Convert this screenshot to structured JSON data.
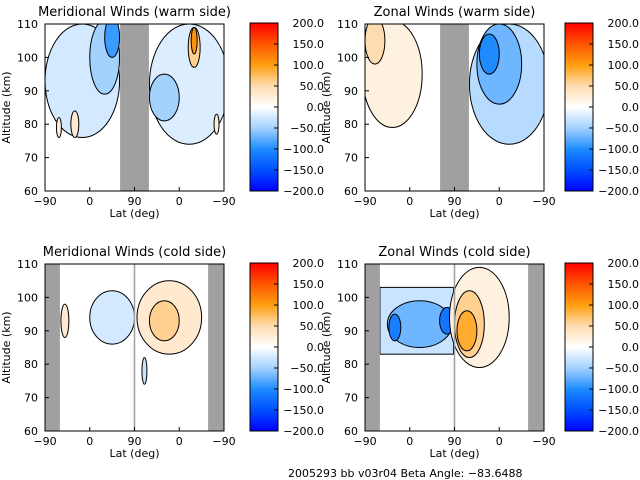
{
  "chart_data": [
    {
      "type": "heatmap",
      "title": "Meridional Winds (warm side)",
      "xlabel": "Lat (deg)",
      "ylabel": "Altitude (km)",
      "xlim": [
        0,
        360
      ],
      "x_ticks": [
        0,
        90,
        180,
        270,
        360
      ],
      "x_tick_labels": [
        "−90",
        "0",
        "90",
        "0",
        "−90"
      ],
      "ylim": [
        60,
        110
      ],
      "y_ticks": [
        60,
        70,
        80,
        90,
        100,
        110
      ],
      "no_data_regions": [
        [
          151,
          209
        ]
      ],
      "features": [
        {
          "x": 75,
          "y": 93,
          "rx": 75,
          "ry": 17,
          "v": -25
        },
        {
          "x": 120,
          "y": 100,
          "rx": 30,
          "ry": 11,
          "v": -50
        },
        {
          "x": 135,
          "y": 106,
          "rx": 15,
          "ry": 6,
          "v": -90
        },
        {
          "x": 290,
          "y": 92,
          "rx": 80,
          "ry": 18,
          "v": -20
        },
        {
          "x": 240,
          "y": 88,
          "rx": 30,
          "ry": 7,
          "v": -50
        },
        {
          "x": 300,
          "y": 103,
          "rx": 12,
          "ry": 6,
          "v": 60
        },
        {
          "x": 300,
          "y": 105,
          "rx": 6,
          "ry": 4,
          "v": 110
        },
        {
          "x": 60,
          "y": 80,
          "rx": 8,
          "ry": 4,
          "v": 30
        },
        {
          "x": 28,
          "y": 79,
          "rx": 5,
          "ry": 3,
          "v": 25
        },
        {
          "x": 345,
          "y": 80,
          "rx": 5,
          "ry": 3,
          "v": 25
        }
      ]
    },
    {
      "type": "heatmap",
      "title": "Zonal Winds (warm side)",
      "xlabel": "Lat (deg)",
      "ylabel": "Altitude (km)",
      "xlim": [
        0,
        360
      ],
      "x_ticks": [
        0,
        90,
        180,
        270,
        360
      ],
      "x_tick_labels": [
        "−90",
        "0",
        "90",
        "0",
        "−90"
      ],
      "ylim": [
        60,
        110
      ],
      "y_ticks": [
        60,
        70,
        80,
        90,
        100,
        110
      ],
      "no_data_regions": [
        [
          151,
          209
        ]
      ],
      "features": [
        {
          "x": 55,
          "y": 95,
          "rx": 60,
          "ry": 16,
          "v": 20
        },
        {
          "x": 20,
          "y": 105,
          "rx": 20,
          "ry": 7,
          "v": 50
        },
        {
          "x": 290,
          "y": 92,
          "rx": 80,
          "ry": 18,
          "v": -40
        },
        {
          "x": 270,
          "y": 98,
          "rx": 45,
          "ry": 12,
          "v": -70
        },
        {
          "x": 250,
          "y": 101,
          "rx": 20,
          "ry": 6,
          "v": -100
        }
      ]
    },
    {
      "type": "heatmap",
      "title": "Meridional Winds (cold side)",
      "xlabel": "Lat (deg)",
      "ylabel": "Altitude (km)",
      "xlim": [
        0,
        360
      ],
      "x_ticks": [
        0,
        90,
        180,
        270,
        360
      ],
      "x_tick_labels": [
        "−90",
        "0",
        "90",
        "0",
        "−90"
      ],
      "ylim": [
        60,
        110
      ],
      "y_ticks": [
        60,
        70,
        80,
        90,
        100,
        110
      ],
      "no_data_regions": [
        [
          0,
          30
        ],
        [
          328,
          360
        ]
      ],
      "features": [
        {
          "x": 135,
          "y": 94,
          "rx": 45,
          "ry": 8,
          "v": -25
        },
        {
          "x": 40,
          "y": 93,
          "rx": 8,
          "ry": 5,
          "v": 30
        },
        {
          "x": 250,
          "y": 94,
          "rx": 65,
          "ry": 11,
          "v": 30
        },
        {
          "x": 240,
          "y": 93,
          "rx": 30,
          "ry": 6,
          "v": 60
        },
        {
          "x": 200,
          "y": 78,
          "rx": 5,
          "ry": 4,
          "v": -30
        }
      ]
    },
    {
      "type": "heatmap",
      "title": "Zonal Winds (cold side)",
      "xlabel": "Lat (deg)",
      "ylabel": "Altitude (km)",
      "xlim": [
        0,
        360
      ],
      "x_ticks": [
        0,
        90,
        180,
        270,
        360
      ],
      "x_tick_labels": [
        "−90",
        "0",
        "90",
        "0",
        "−90"
      ],
      "ylim": [
        60,
        110
      ],
      "y_ticks": [
        60,
        70,
        80,
        90,
        100,
        110
      ],
      "no_data_regions": [
        [
          0,
          30
        ],
        [
          328,
          360
        ]
      ],
      "features": [
        {
          "shape": "rect",
          "x0": 30,
          "x1": 178,
          "y0": 83,
          "y1": 103,
          "v": -30
        },
        {
          "x": 110,
          "y": 92,
          "rx": 65,
          "ry": 7,
          "v": -70
        },
        {
          "x": 60,
          "y": 91,
          "rx": 12,
          "ry": 4,
          "v": -110
        },
        {
          "x": 165,
          "y": 93,
          "rx": 15,
          "ry": 4,
          "v": -120
        },
        {
          "x": 230,
          "y": 94,
          "rx": 60,
          "ry": 15,
          "v": 20
        },
        {
          "x": 210,
          "y": 92,
          "rx": 30,
          "ry": 10,
          "v": 60
        },
        {
          "x": 205,
          "y": 90,
          "rx": 20,
          "ry": 6,
          "v": 90
        }
      ]
    }
  ],
  "colorbar": {
    "range": [
      -200,
      200
    ],
    "tick_labels": [
      "200.0",
      "150.0",
      "100.0",
      "50.0",
      "0.0",
      "−50.0",
      "−100.0",
      "−150.0",
      "−200.0"
    ],
    "tick_values": [
      200,
      150,
      100,
      50,
      0,
      -50,
      -100,
      -150,
      -200
    ],
    "stops": [
      {
        "v": -200,
        "c": "#0000ff"
      },
      {
        "v": -150,
        "c": "#0050ff"
      },
      {
        "v": -100,
        "c": "#1e8cff"
      },
      {
        "v": -50,
        "c": "#a4d2ff"
      },
      {
        "v": 0,
        "c": "#ffffff"
      },
      {
        "v": 50,
        "c": "#ffdcb0"
      },
      {
        "v": 100,
        "c": "#ffa010"
      },
      {
        "v": 150,
        "c": "#ff5500"
      },
      {
        "v": 200,
        "c": "#ff0000"
      }
    ],
    "no_data_color": "#a0a0a0"
  },
  "footer": "2005293 bb v03r04   Beta Angle: −83.6488"
}
